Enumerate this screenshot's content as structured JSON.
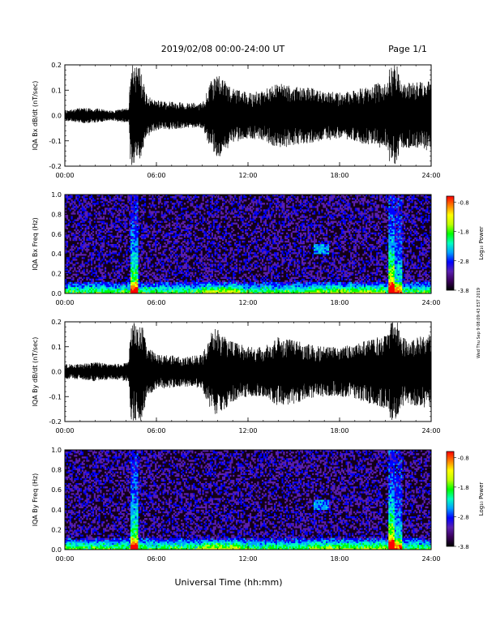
{
  "header": {
    "title": "2019/02/08  00:00-24:00 UT",
    "page": "Page 1/1"
  },
  "footer": {
    "xlabel": "Universal Time (hh:mm)",
    "side_note": "Wed Thu Sep 9 08:09:43 EST 2019"
  },
  "colorbar": {
    "label": "Log₁₀ Power",
    "ticks": [
      "-0.8",
      "-1.8",
      "-2.8",
      "-3.8"
    ],
    "tick_values": [
      -0.8,
      -1.8,
      -2.8,
      -3.8
    ],
    "range": [
      -3.8,
      -0.6
    ],
    "colors": [
      "#000000",
      "#3a005a",
      "#5a1fb0",
      "#0000ff",
      "#00a0ff",
      "#00ffc0",
      "#00ff00",
      "#c0ff00",
      "#ffff00",
      "#ff8000",
      "#ff0000"
    ]
  },
  "chart_data": [
    {
      "type": "line",
      "ylabel": "IQA Bx dB/dt (nT/sec)",
      "ylim": [
        -0.2,
        0.2
      ],
      "yticks": [
        "0.2",
        "0.1",
        "0.0",
        "-0.1",
        "-0.2"
      ],
      "ytick_values": [
        0.2,
        0.1,
        0.0,
        -0.1,
        -0.2
      ],
      "xlim": [
        "00:00",
        "24:00"
      ],
      "xticks": [
        "00:00",
        "06:00",
        "12:00",
        "18:00",
        "24:00"
      ],
      "envelope": [
        [
          0.0,
          0.02
        ],
        [
          1.0,
          0.03
        ],
        [
          2.0,
          0.03
        ],
        [
          3.0,
          0.02
        ],
        [
          4.2,
          0.03
        ],
        [
          4.3,
          0.2
        ],
        [
          4.9,
          0.2
        ],
        [
          5.3,
          0.09
        ],
        [
          6.0,
          0.06
        ],
        [
          8.0,
          0.05
        ],
        [
          9.0,
          0.05
        ],
        [
          9.5,
          0.13
        ],
        [
          10.0,
          0.17
        ],
        [
          11.0,
          0.11
        ],
        [
          12.0,
          0.09
        ],
        [
          13.0,
          0.1
        ],
        [
          14.0,
          0.13
        ],
        [
          15.0,
          0.12
        ],
        [
          16.0,
          0.11
        ],
        [
          17.0,
          0.1
        ],
        [
          18.0,
          0.09
        ],
        [
          19.0,
          0.1
        ],
        [
          20.0,
          0.12
        ],
        [
          21.2,
          0.14
        ],
        [
          21.3,
          0.2
        ],
        [
          21.8,
          0.2
        ],
        [
          22.0,
          0.13
        ],
        [
          23.0,
          0.13
        ],
        [
          24.0,
          0.14
        ]
      ]
    },
    {
      "type": "heatmap",
      "ylabel": "IQA Bx Freq (Hz)",
      "ylim": [
        0.0,
        1.0
      ],
      "yticks": [
        "1.0",
        "0.8",
        "0.6",
        "0.4",
        "0.2",
        "0.0"
      ],
      "ytick_values": [
        1.0,
        0.8,
        0.6,
        0.4,
        0.2,
        0.0
      ],
      "xlim": [
        "00:00",
        "24:00"
      ],
      "xticks": [
        "00:00",
        "06:00",
        "12:00",
        "18:00",
        "24:00"
      ]
    },
    {
      "type": "line",
      "ylabel": "IQA By dB/dt (nT/sec)",
      "ylim": [
        -0.2,
        0.2
      ],
      "yticks": [
        "0.2",
        "0.1",
        "0.0",
        "-0.1",
        "-0.2"
      ],
      "ytick_values": [
        0.2,
        0.1,
        0.0,
        -0.1,
        -0.2
      ],
      "xlim": [
        "00:00",
        "24:00"
      ],
      "xticks": [
        "00:00",
        "06:00",
        "12:00",
        "18:00",
        "24:00"
      ],
      "envelope": [
        [
          0.0,
          0.03
        ],
        [
          1.0,
          0.03
        ],
        [
          2.0,
          0.04
        ],
        [
          3.0,
          0.03
        ],
        [
          4.2,
          0.04
        ],
        [
          4.3,
          0.2
        ],
        [
          5.0,
          0.2
        ],
        [
          5.4,
          0.1
        ],
        [
          6.0,
          0.07
        ],
        [
          8.0,
          0.06
        ],
        [
          9.0,
          0.07
        ],
        [
          9.5,
          0.15
        ],
        [
          10.0,
          0.18
        ],
        [
          11.0,
          0.12
        ],
        [
          12.0,
          0.1
        ],
        [
          13.0,
          0.1
        ],
        [
          14.0,
          0.14
        ],
        [
          15.0,
          0.13
        ],
        [
          16.0,
          0.11
        ],
        [
          17.0,
          0.1
        ],
        [
          18.0,
          0.1
        ],
        [
          19.0,
          0.11
        ],
        [
          20.0,
          0.13
        ],
        [
          21.2,
          0.15
        ],
        [
          21.3,
          0.2
        ],
        [
          21.8,
          0.2
        ],
        [
          22.0,
          0.14
        ],
        [
          23.0,
          0.14
        ],
        [
          24.0,
          0.15
        ]
      ]
    },
    {
      "type": "heatmap",
      "ylabel": "IQA By Freq (Hz)",
      "ylim": [
        0.0,
        1.0
      ],
      "yticks": [
        "1.0",
        "0.8",
        "0.6",
        "0.4",
        "0.2",
        "0.0"
      ],
      "ytick_values": [
        1.0,
        0.8,
        0.6,
        0.4,
        0.2,
        0.0
      ],
      "xlim": [
        "00:00",
        "24:00"
      ],
      "xticks": [
        "00:00",
        "06:00",
        "12:00",
        "18:00",
        "24:00"
      ]
    }
  ]
}
